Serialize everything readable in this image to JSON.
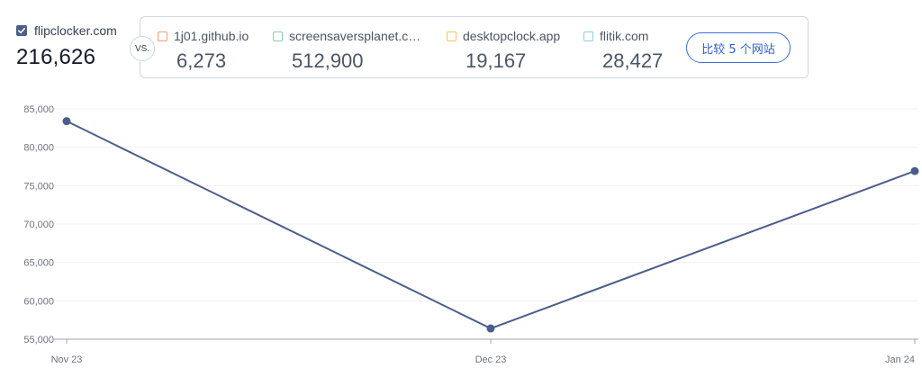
{
  "primary_site": {
    "name": "flipclocker.com",
    "value": "216,626",
    "color": "#4b5d8a"
  },
  "vs_label": "VS.",
  "competitors": [
    {
      "name": "1j01.github.io",
      "value": "6,273",
      "color": "#f39c6b"
    },
    {
      "name": "screensaversplanet.co...",
      "value": "512,900",
      "color": "#7dd3a8"
    },
    {
      "name": "desktopclock.app",
      "value": "19,167",
      "color": "#f6c453"
    },
    {
      "name": "flitik.com",
      "value": "28,427",
      "color": "#8ccfe0"
    }
  ],
  "compare_button_label": "比较 5 个网站",
  "chart_data": {
    "type": "line",
    "x": [
      "Nov 23",
      "Dec 23",
      "Jan 24"
    ],
    "series": [
      {
        "name": "flipclocker.com",
        "values": [
          83400,
          56400,
          76900
        ],
        "color": "#4b5d8a"
      }
    ],
    "y_ticks": [
      "55,000",
      "60,000",
      "65,000",
      "70,000",
      "75,000",
      "80,000",
      "85,000"
    ],
    "y_tick_values": [
      55000,
      60000,
      65000,
      70000,
      75000,
      80000,
      85000
    ],
    "ylim": [
      55000,
      85000
    ],
    "grid": true,
    "legend": "none"
  }
}
